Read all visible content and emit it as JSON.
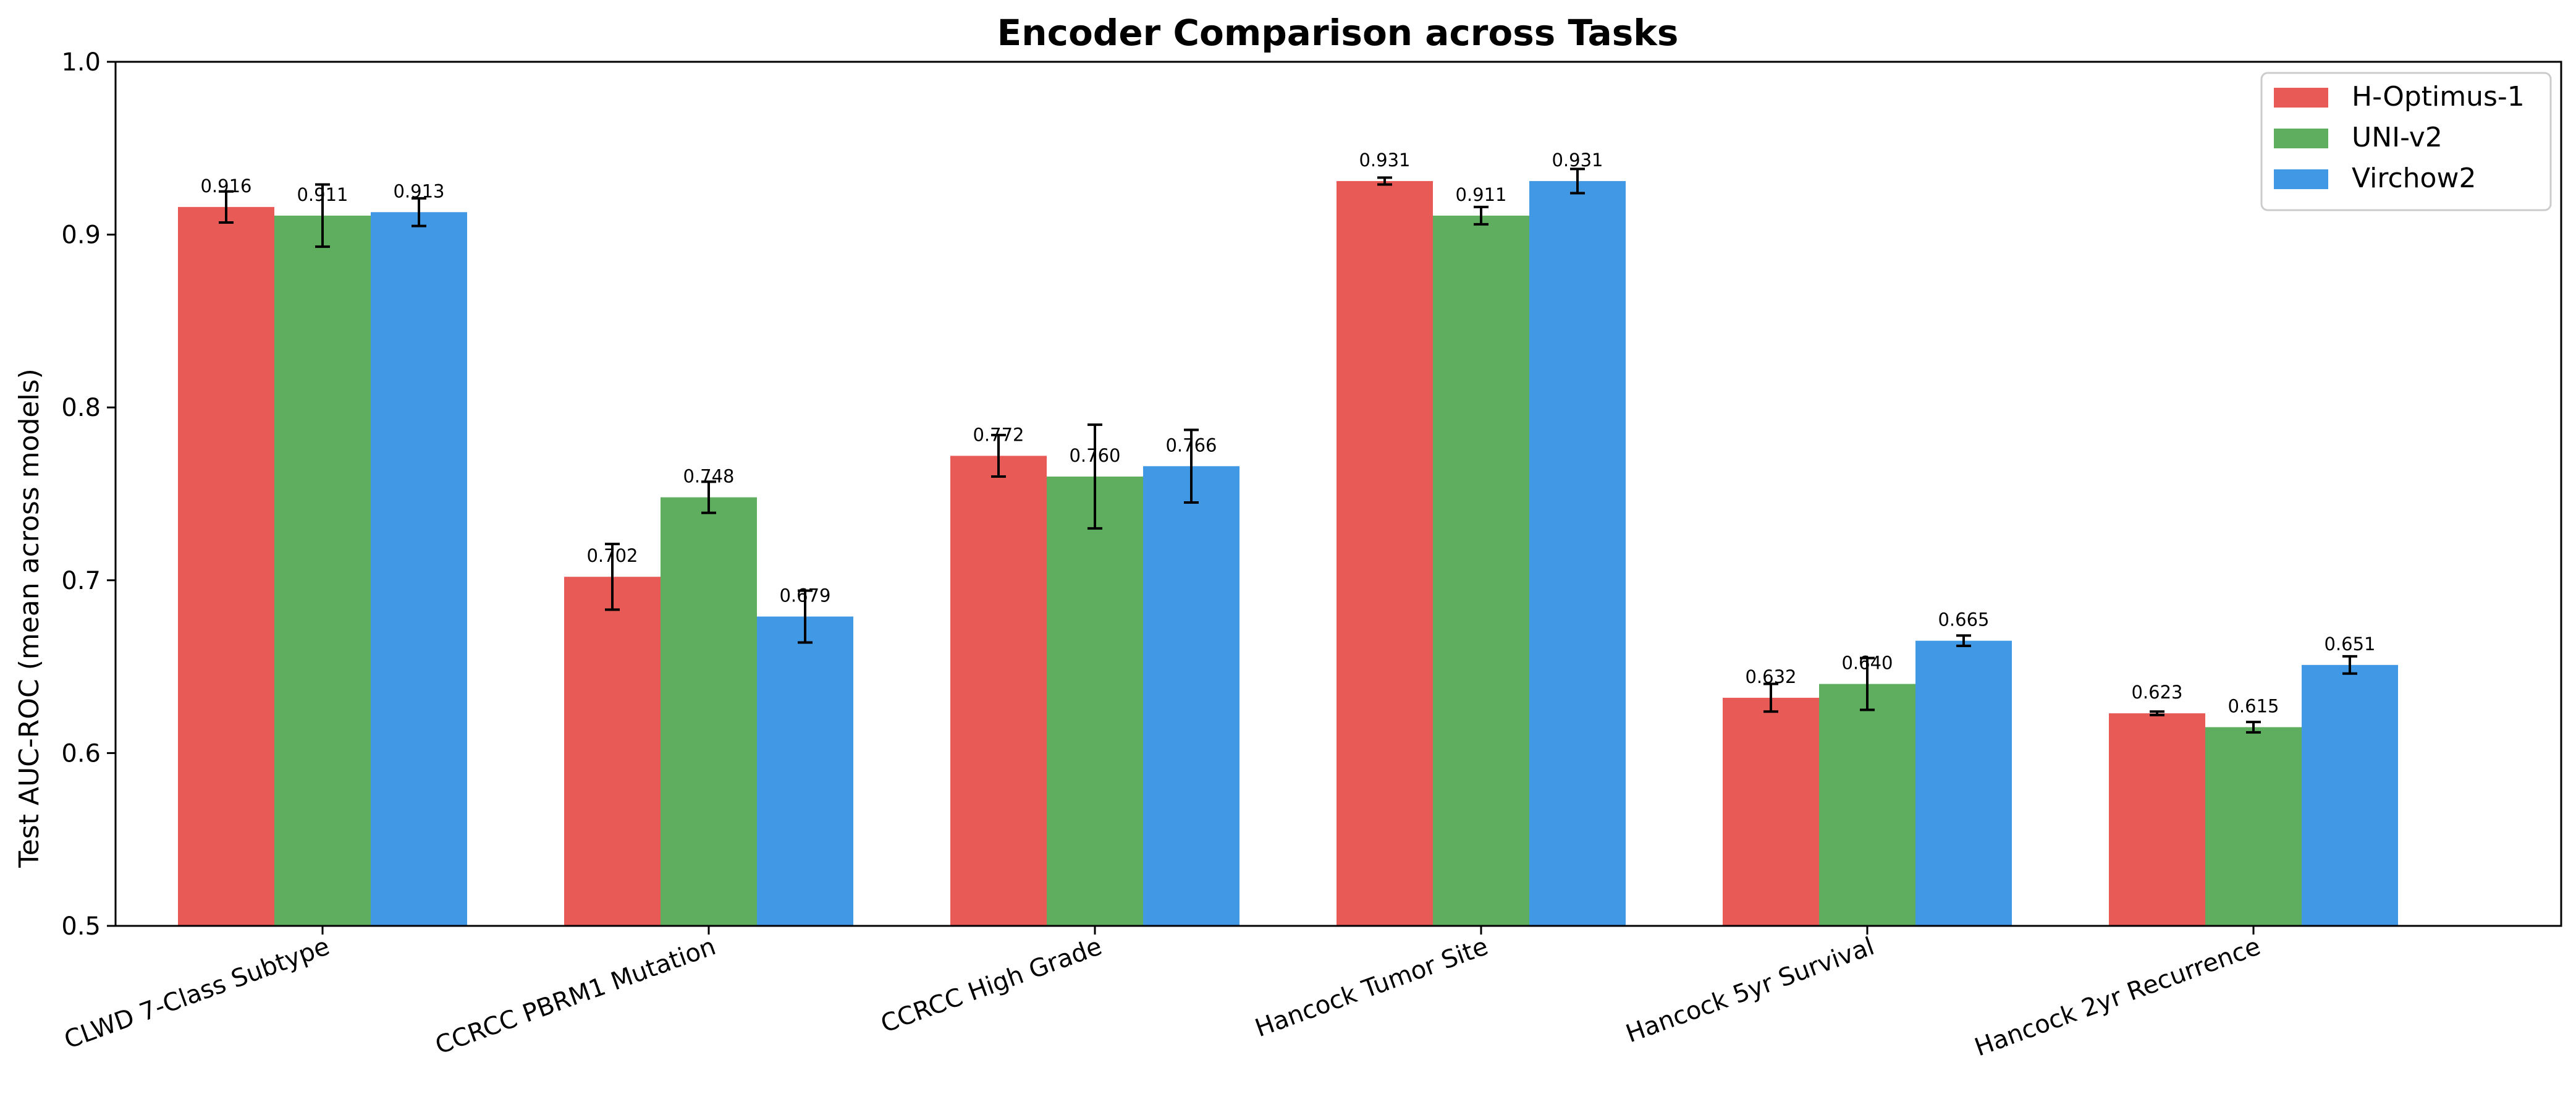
{
  "chart_data": {
    "type": "bar",
    "title": "Encoder Comparison across Tasks",
    "ylabel": "Test AUC-ROC (mean across models)",
    "xlabel": "",
    "ylim": [
      0.5,
      1.0
    ],
    "yticks": [
      "0.5",
      "0.6",
      "0.7",
      "0.8",
      "0.9",
      "1.0"
    ],
    "grid": false,
    "legend": "upper right",
    "categories": [
      "CLWD 7-Class Subtype",
      "CCRCC PBRM1 Mutation",
      "CCRCC High Grade",
      "Hancock Tumor Site",
      "Hancock 5yr Survival",
      "Hancock 2yr Recurrence"
    ],
    "series": [
      {
        "name": "H-Optimus-1",
        "color": "#e85a55",
        "values": [
          0.916,
          0.702,
          0.772,
          0.931,
          0.632,
          0.623
        ],
        "labels": [
          "0.916",
          "0.702",
          "0.772",
          "0.931",
          "0.632",
          "0.623"
        ],
        "errors": [
          0.009,
          0.019,
          0.012,
          0.002,
          0.008,
          0.001
        ]
      },
      {
        "name": "UNI-v2",
        "color": "#5fae5f",
        "values": [
          0.911,
          0.748,
          0.76,
          0.911,
          0.64,
          0.615
        ],
        "labels": [
          "0.911",
          "0.748",
          "0.760",
          "0.911",
          "0.640",
          "0.615"
        ],
        "errors": [
          0.018,
          0.009,
          0.03,
          0.005,
          0.015,
          0.003
        ]
      },
      {
        "name": "Virchow2",
        "color": "#4199e6",
        "values": [
          0.913,
          0.679,
          0.766,
          0.931,
          0.665,
          0.651
        ],
        "labels": [
          "0.913",
          "0.679",
          "0.766",
          "0.931",
          "0.665",
          "0.651"
        ],
        "errors": [
          0.008,
          0.015,
          0.021,
          0.007,
          0.003,
          0.005
        ]
      }
    ]
  }
}
